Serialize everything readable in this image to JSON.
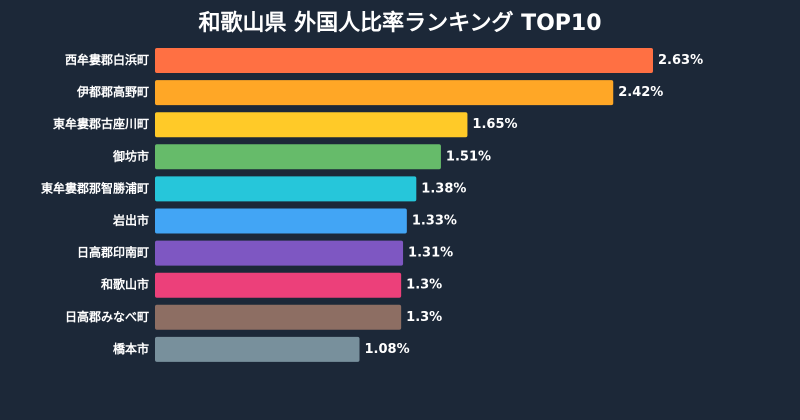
{
  "chart_data": {
    "type": "bar",
    "orientation": "horizontal",
    "title": "和歌山県 外国人比率ランキング TOP10",
    "categories": [
      "西牟婁郡白浜町",
      "伊都郡高野町",
      "東牟婁郡古座川町",
      "御坊市",
      "東牟婁郡那智勝浦町",
      "岩出市",
      "日高郡印南町",
      "和歌山市",
      "日高郡みなべ町",
      "橋本市"
    ],
    "values": [
      2.63,
      2.42,
      1.65,
      1.51,
      1.38,
      1.33,
      1.31,
      1.3,
      1.3,
      1.08
    ],
    "value_labels": [
      "2.63%",
      "2.42%",
      "1.65%",
      "1.51%",
      "1.38%",
      "1.33%",
      "1.31%",
      "1.3%",
      "1.3%",
      "1.08%"
    ],
    "colors": [
      "#ff7043",
      "#ffa726",
      "#ffca28",
      "#66bb6a",
      "#26c6da",
      "#42a5f5",
      "#7e57c2",
      "#ec407a",
      "#8d6e63",
      "#78909c"
    ],
    "xlim": [
      0,
      2.63
    ],
    "grid": false,
    "legend": "none",
    "xlabel": "",
    "ylabel": ""
  }
}
